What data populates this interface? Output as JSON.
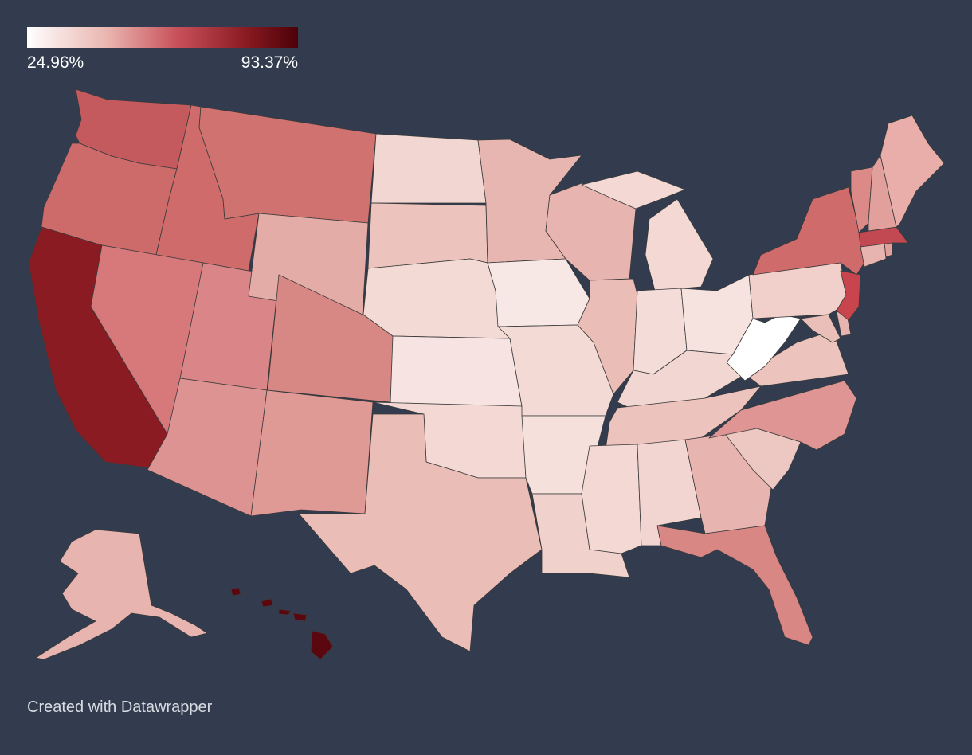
{
  "legend": {
    "min_label": "24.96%",
    "max_label": "93.37%",
    "min_value": 24.96,
    "max_value": 93.37,
    "gradient_colors": [
      "#ffffff",
      "#e9b4ae",
      "#c9525c",
      "#8c1c24",
      "#4d0008"
    ]
  },
  "credit": "Created with Datawrapper",
  "colors": {
    "background": "#323c4e",
    "state_stroke": "#3a3a3a"
  }
}
